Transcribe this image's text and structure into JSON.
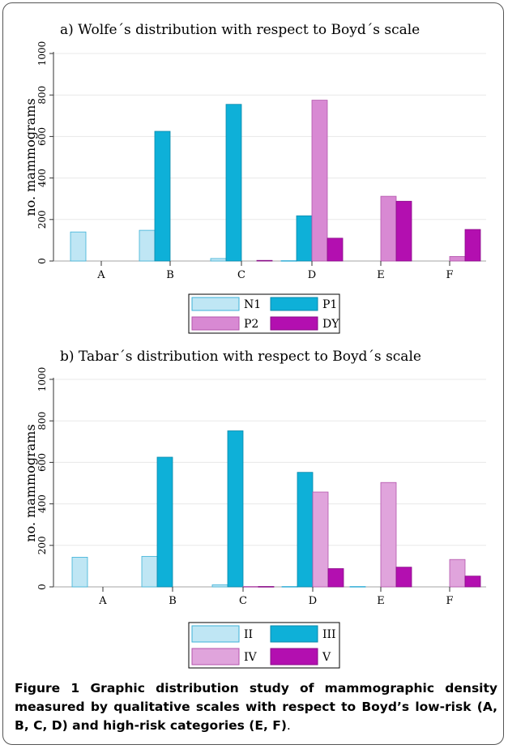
{
  "charts_meta": {
    "colors": {
      "light_blue": "#bfe6f4",
      "light_blue_stroke": "#3db2d8",
      "teal": "#0eb0d8",
      "teal_stroke": "#0a89ab",
      "pink": "#d889d3",
      "pink_stroke": "#b355ac",
      "pink_light": "#e0a4dc",
      "magenta": "#b30fb0",
      "magenta_stroke": "#8a0c88",
      "grid": "#e8e8e8"
    }
  },
  "chart_data": [
    {
      "type": "bar",
      "title": "a) Wolfe´s distribution with respect to Boyd´s scale",
      "xlabel": "",
      "ylabel": "no. mammograms",
      "ylim": [
        0,
        1000
      ],
      "yticks": [
        "0",
        "200",
        "400",
        "600",
        "800",
        "1000"
      ],
      "categories": [
        "A",
        "B",
        "C",
        "D",
        "E",
        "F"
      ],
      "series": [
        {
          "name": "N1",
          "values": [
            140,
            148,
            12,
            2,
            0,
            0
          ],
          "color": "#bfe6f4",
          "stroke": "#3db2d8"
        },
        {
          "name": "P1",
          "values": [
            0,
            625,
            755,
            218,
            0,
            0
          ],
          "color": "#0eb0d8",
          "stroke": "#0a89ab"
        },
        {
          "name": "P2",
          "values": [
            0,
            0,
            0,
            775,
            312,
            22
          ],
          "color": "#d889d3",
          "stroke": "#b355ac"
        },
        {
          "name": "DY",
          "values": [
            0,
            0,
            3,
            110,
            288,
            152
          ],
          "color": "#b30fb0",
          "stroke": "#8a0c88"
        }
      ],
      "legend": "bottom",
      "grid": true
    },
    {
      "type": "bar",
      "title": "b) Tabar´s distribution with respect to Boyd´s scale",
      "xlabel": "",
      "ylabel": "no. mammograms",
      "ylim": [
        0,
        1000
      ],
      "yticks": [
        "0",
        "200",
        "400",
        "600",
        "800",
        "1000"
      ],
      "categories": [
        "A",
        "B",
        "C",
        "D",
        "E",
        "F"
      ],
      "series": [
        {
          "name": "II",
          "values": [
            143,
            147,
            10,
            2,
            2,
            0
          ],
          "color": "#bfe6f4",
          "stroke": "#3db2d8"
        },
        {
          "name": "III",
          "values": [
            0,
            625,
            752,
            552,
            0,
            0
          ],
          "color": "#0eb0d8",
          "stroke": "#0a89ab"
        },
        {
          "name": "IV",
          "values": [
            0,
            0,
            2,
            457,
            503,
            132
          ],
          "color": "#e0a4dc",
          "stroke": "#b355ac"
        },
        {
          "name": "V",
          "values": [
            0,
            0,
            2,
            88,
            95,
            52
          ],
          "color": "#b30fb0",
          "stroke": "#8a0c88"
        }
      ],
      "legend": "bottom",
      "grid": true
    }
  ],
  "caption": {
    "label": "Figure 1",
    "text": " Graphic distribution study of mammographic density measured by qualitative scales with respect to Boyd’s low-risk (A, B, C, D) and high-risk categories (E, F)",
    "end": "."
  }
}
